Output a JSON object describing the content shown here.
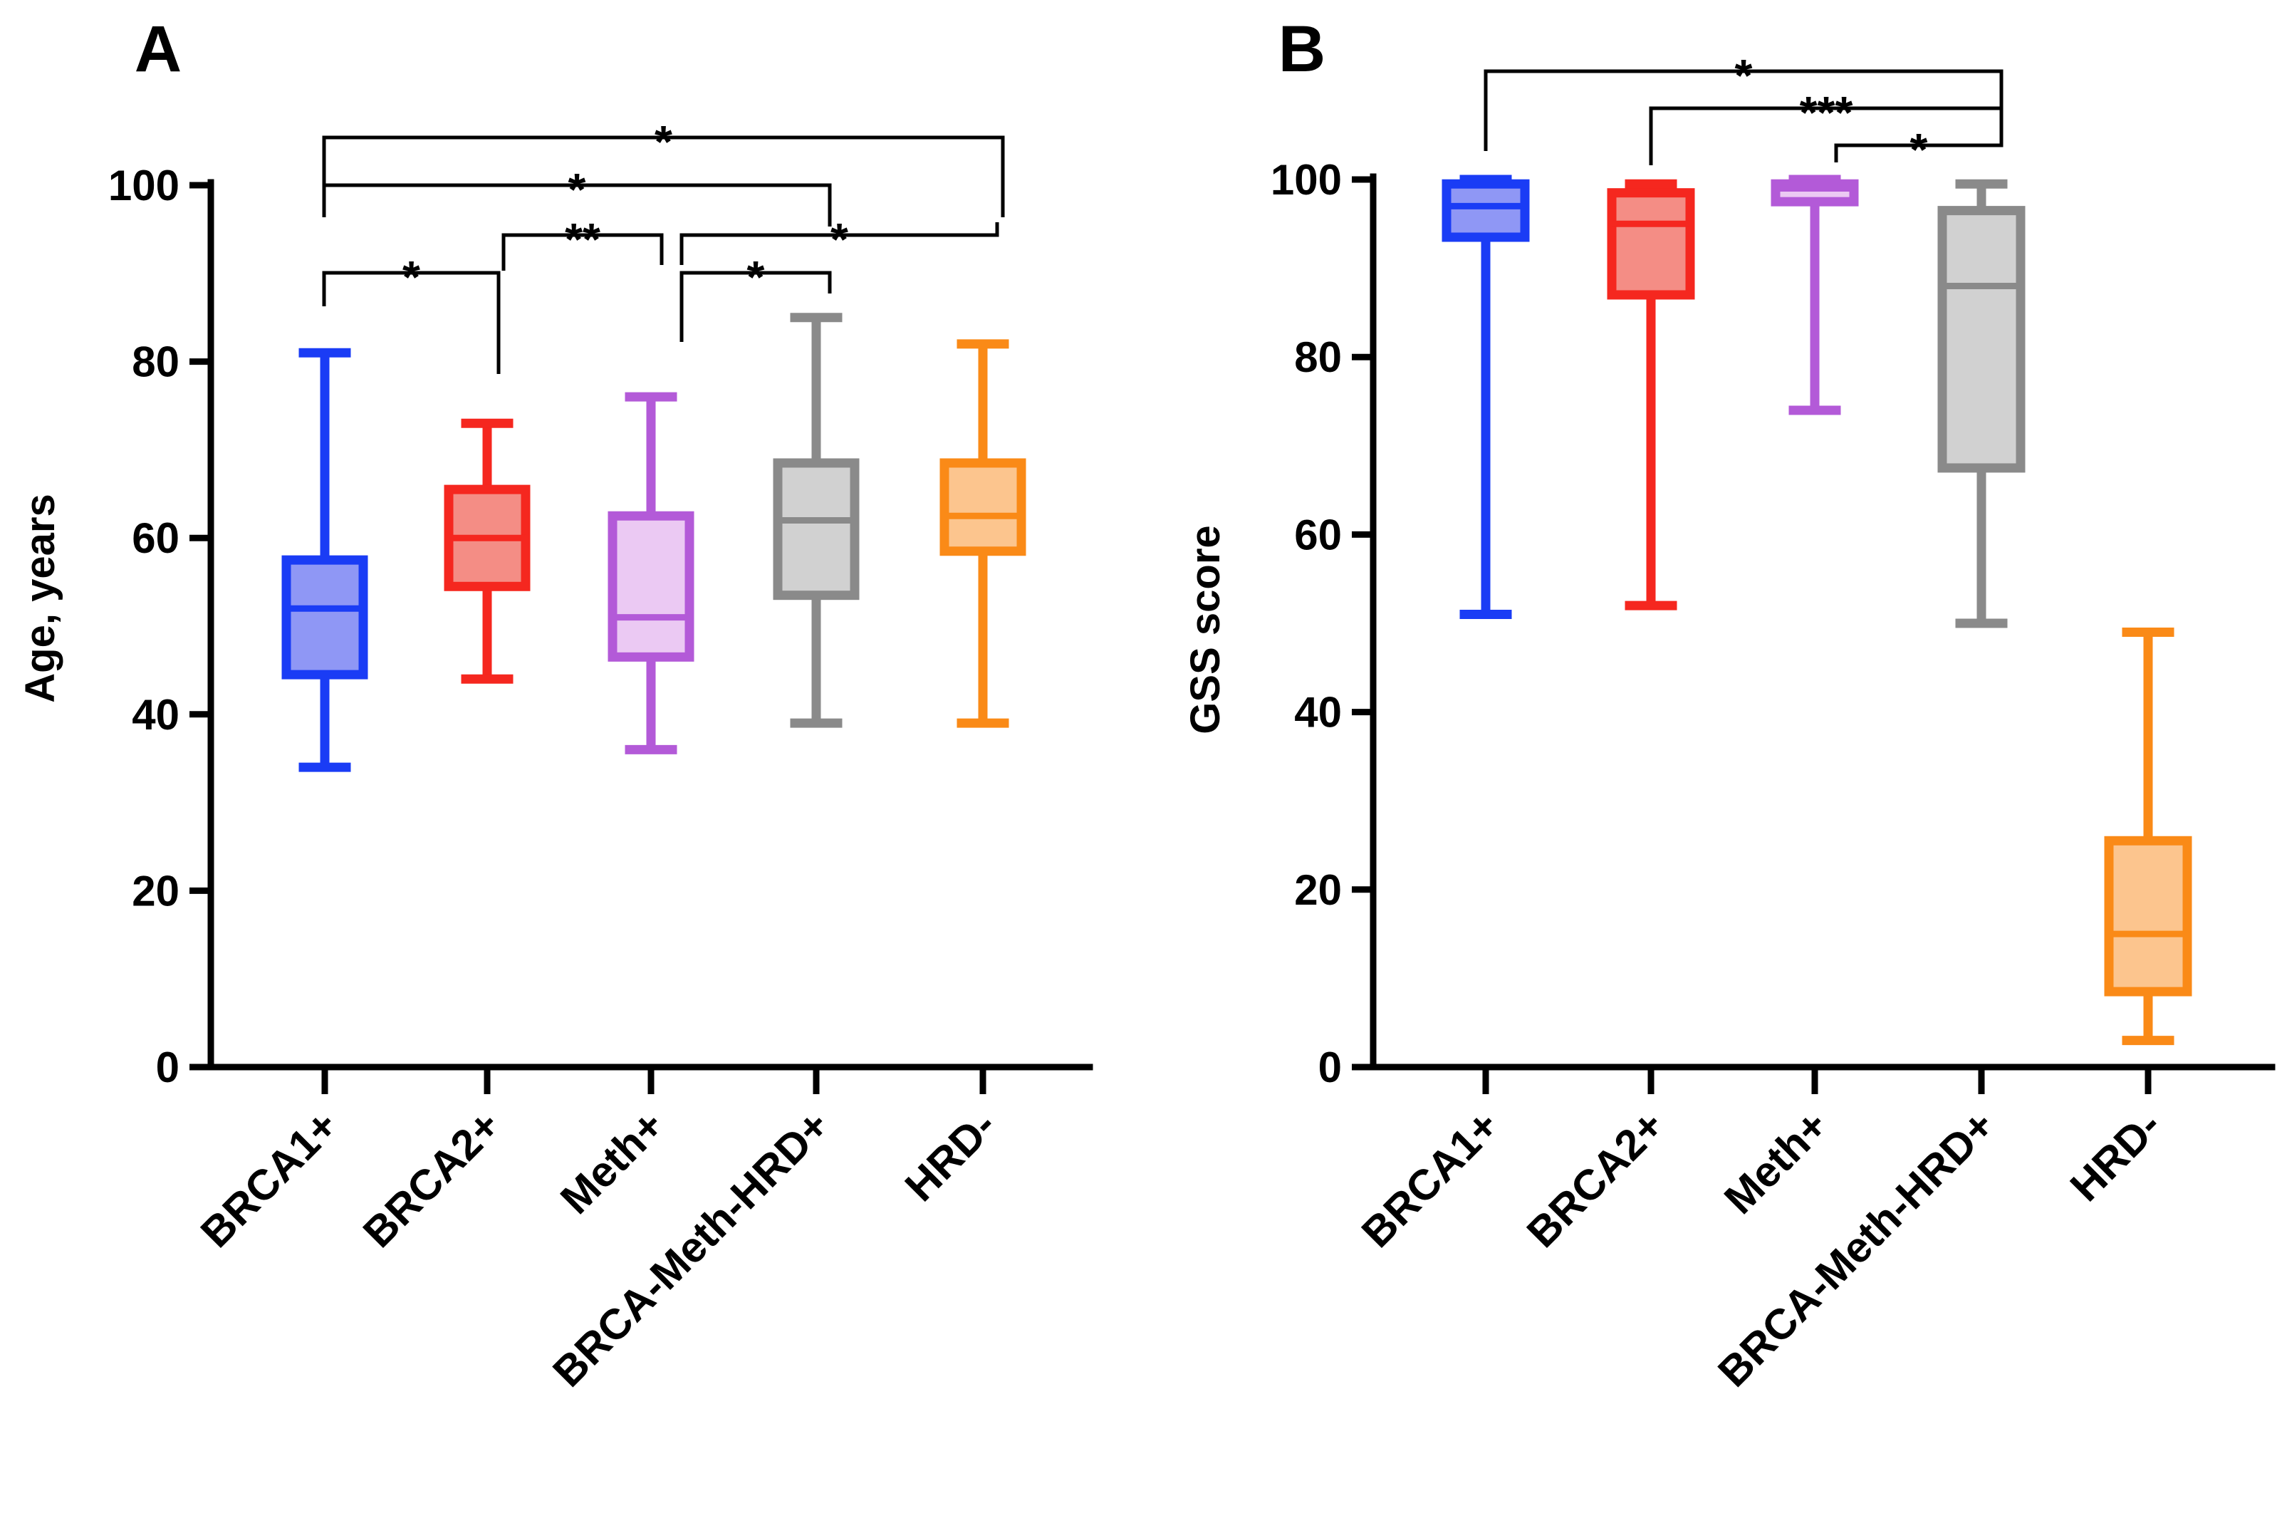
{
  "chart_data": [
    {
      "panel": "A",
      "type": "boxplot",
      "title": "",
      "xlabel": "",
      "ylabel": "Age, years",
      "ylim": [
        0,
        100
      ],
      "yticks": [
        0,
        20,
        40,
        60,
        80,
        100
      ],
      "categories": [
        "BRCA1+",
        "BRCA2+",
        "Meth+",
        "BRCA-Meth-HRD+",
        "HRD-"
      ],
      "boxes": [
        {
          "name": "BRCA1+",
          "min": 34,
          "q1": 44.5,
          "median": 52,
          "q3": 57.5,
          "max": 81,
          "color": "#1a3cf5",
          "fill": "#8f97f5"
        },
        {
          "name": "BRCA2+",
          "min": 44,
          "q1": 54.5,
          "median": 60,
          "q3": 65.5,
          "max": 73,
          "color": "#f5271f",
          "fill": "#f48d85"
        },
        {
          "name": "Meth+",
          "min": 36,
          "q1": 46.5,
          "median": 51,
          "q3": 62.5,
          "max": 76,
          "color": "#b35ad8",
          "fill": "#ebc9f3"
        },
        {
          "name": "BRCA-Meth-HRD+",
          "min": 39,
          "q1": 53.5,
          "median": 62,
          "q3": 68.5,
          "max": 85,
          "color": "#8a8a8a",
          "fill": "#d1d1d1"
        },
        {
          "name": "HRD-",
          "min": 39,
          "q1": 58.5,
          "median": 62.5,
          "q3": 68.5,
          "max": 82,
          "color": "#fa8a17",
          "fill": "#fcc58e"
        }
      ],
      "significance": [
        {
          "from": 0,
          "to": 4,
          "label": "*"
        },
        {
          "from": 0,
          "to": 3,
          "label": "*"
        },
        {
          "from": 0,
          "to": 1,
          "label": "*"
        },
        {
          "from": 1,
          "to": 2,
          "label": "**"
        },
        {
          "from": 2,
          "to": 4,
          "label": "*"
        },
        {
          "from": 2,
          "to": 3,
          "label": "*"
        }
      ]
    },
    {
      "panel": "B",
      "type": "boxplot",
      "title": "",
      "xlabel": "",
      "ylabel": "GSS score",
      "ylim": [
        0,
        100
      ],
      "yticks": [
        0,
        20,
        40,
        60,
        80,
        100
      ],
      "categories": [
        "BRCA1+",
        "BRCA2+",
        "Meth+",
        "BRCA-Meth-HRD+",
        "HRD-"
      ],
      "boxes": [
        {
          "name": "BRCA1+",
          "min": 51,
          "q1": 93.5,
          "median": 97,
          "q3": 99.5,
          "max": 100,
          "color": "#1a3cf5",
          "fill": "#8f97f5"
        },
        {
          "name": "BRCA2+",
          "min": 52,
          "q1": 87,
          "median": 95,
          "q3": 98.5,
          "max": 99.5,
          "color": "#f5271f",
          "fill": "#f48d85"
        },
        {
          "name": "Meth+",
          "min": 74,
          "q1": 97.5,
          "median": 99,
          "q3": 99.5,
          "max": 100,
          "color": "#b35ad8",
          "fill": "#ebc9f3"
        },
        {
          "name": "BRCA-Meth-HRD+",
          "min": 50,
          "q1": 67.5,
          "median": 88,
          "q3": 96.5,
          "max": 99.5,
          "color": "#8a8a8a",
          "fill": "#d1d1d1"
        },
        {
          "name": "HRD-",
          "min": 3,
          "q1": 8.5,
          "median": 15,
          "q3": 25.5,
          "max": 49,
          "color": "#fa8a17",
          "fill": "#fcc58e"
        }
      ],
      "significance": [
        {
          "from": 0,
          "to": 3,
          "label": "*"
        },
        {
          "from": 1,
          "to": 3,
          "label": "***"
        },
        {
          "from": 2,
          "to": 3,
          "label": "*"
        }
      ]
    }
  ]
}
